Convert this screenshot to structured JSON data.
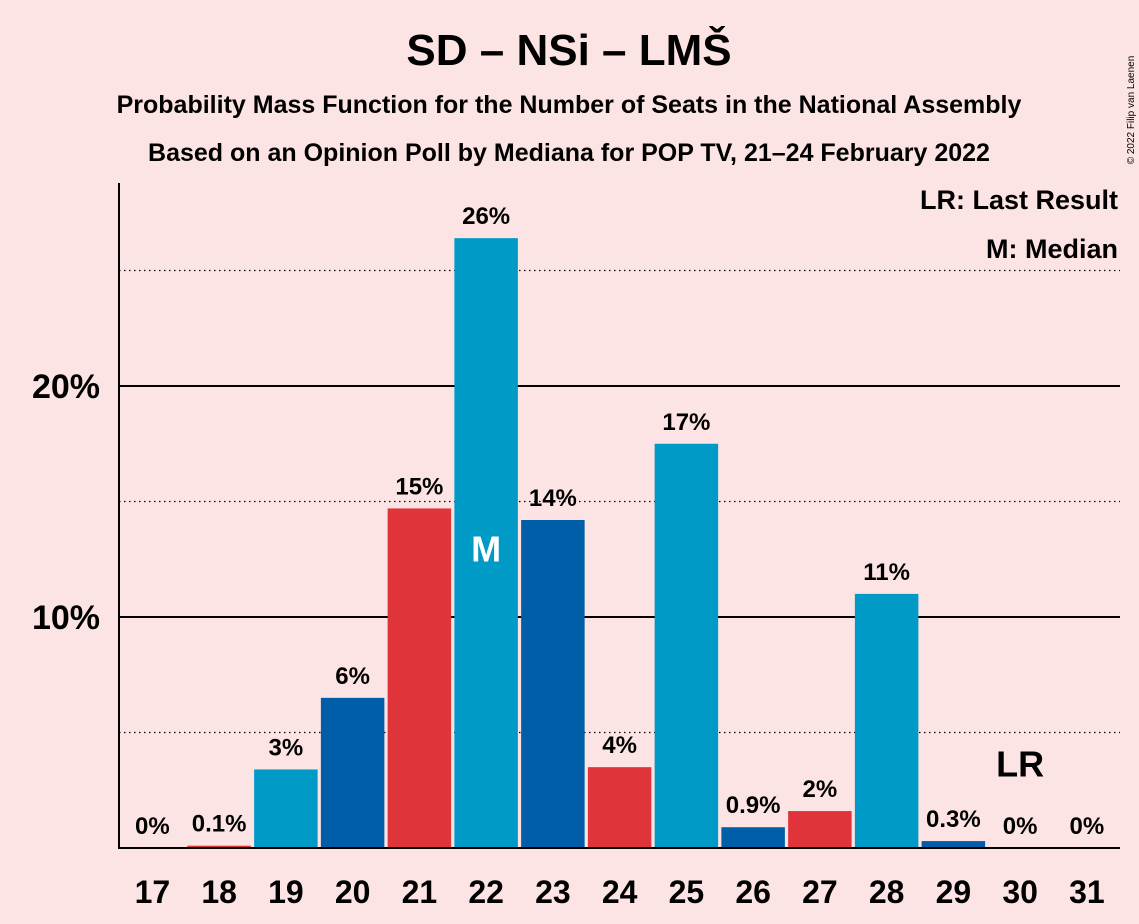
{
  "title": "SD – NSi – LMŠ",
  "subtitle1": "Probability Mass Function for the Number of Seats in the National Assembly",
  "subtitle2": "Based on an Opinion Poll by Mediana for POP TV, 21–24 February 2022",
  "legend_lr": "LR: Last Result",
  "legend_m": "M: Median",
  "copyright": "© 2022 Filip van Laenen",
  "colors": {
    "background": "#fde4e4",
    "sd_red": "#e0343b",
    "nsi_blue": "#005ea8",
    "lms_cyan": "#009ac7",
    "axis": "#000000"
  },
  "chart_data": {
    "type": "bar",
    "categories": [
      "17",
      "18",
      "19",
      "20",
      "21",
      "22",
      "23",
      "24",
      "25",
      "26",
      "27",
      "28",
      "29",
      "30",
      "31"
    ],
    "values": [
      0,
      0.1,
      3.4,
      6.5,
      14.7,
      26.4,
      14.2,
      3.5,
      17.5,
      0.9,
      1.6,
      11.0,
      0.3,
      0,
      0
    ],
    "labels": [
      "0%",
      "0.1%",
      "3%",
      "6%",
      "15%",
      "26%",
      "14%",
      "4%",
      "17%",
      "0.9%",
      "2%",
      "11%",
      "0.3%",
      "0%",
      "0%"
    ],
    "bar_colors": [
      "lms_cyan",
      "sd_red",
      "lms_cyan",
      "nsi_blue",
      "sd_red",
      "lms_cyan",
      "nsi_blue",
      "sd_red",
      "lms_cyan",
      "nsi_blue",
      "sd_red",
      "lms_cyan",
      "nsi_blue",
      "sd_red",
      "lms_cyan"
    ],
    "yticks": [
      {
        "value": 10,
        "label": "10%"
      },
      {
        "value": 20,
        "label": "20%"
      }
    ],
    "dotted_gridlines": [
      5,
      15,
      25
    ],
    "ylim": [
      0,
      28.7
    ],
    "median_category": "22",
    "median_marker": "M",
    "last_result_category": "30",
    "last_result_marker": "LR",
    "legend_position": "top-right"
  }
}
